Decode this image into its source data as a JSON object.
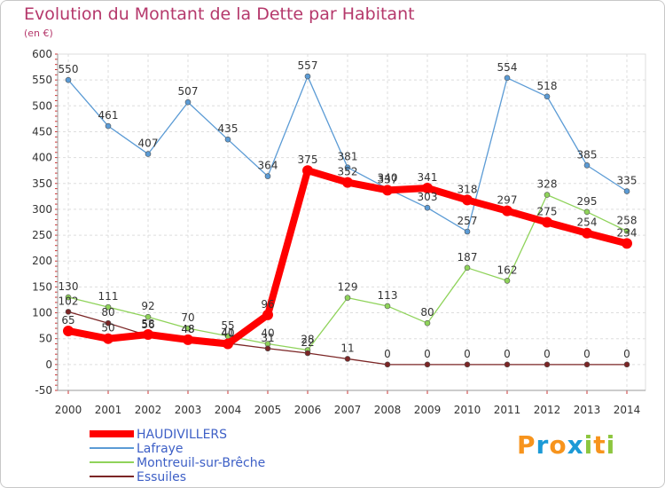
{
  "chart_data": {
    "type": "line",
    "title": "Evolution du Montant de la Dette par Habitant",
    "subtitle": "(en €)",
    "xlabel": "",
    "ylabel": "",
    "ylim": [
      -50,
      600
    ],
    "yticks": [
      "-50",
      "0",
      "50",
      "100",
      "150",
      "200",
      "250",
      "300",
      "350",
      "400",
      "450",
      "500",
      "550",
      "600"
    ],
    "categories": [
      "2000",
      "2001",
      "2002",
      "2003",
      "2004",
      "2005",
      "2006",
      "2007",
      "2008",
      "2009",
      "2010",
      "2011",
      "2012",
      "2013",
      "2014"
    ],
    "grid": true,
    "legend_position": "bottom-left",
    "series": [
      {
        "name": "HAUDIVILLERS",
        "color": "#ff0000",
        "values": [
          65,
          50,
          58,
          48,
          40,
          96,
          375,
          352,
          337,
          341,
          318,
          297,
          275,
          254,
          234
        ],
        "labels": [
          "65",
          "50",
          "58",
          "48",
          "40",
          "96",
          "375",
          "352",
          "337",
          "341",
          "318",
          "297",
          "275",
          "254",
          "234"
        ],
        "bold": true
      },
      {
        "name": "Lafraye",
        "color": "#5b9bd5",
        "values": [
          550,
          461,
          407,
          507,
          435,
          364,
          557,
          381,
          340,
          303,
          257,
          554,
          518,
          385,
          335
        ],
        "labels": [
          "550",
          "461",
          "407",
          "507",
          "435",
          "364",
          "557",
          "381",
          "340",
          "303",
          "257",
          "554",
          "518",
          "385",
          "335"
        ]
      },
      {
        "name": "Montreuil-sur-Brêche",
        "color": "#8fd35a",
        "values": [
          130,
          111,
          92,
          70,
          55,
          40,
          28,
          129,
          113,
          80,
          187,
          162,
          328,
          295,
          258
        ],
        "labels": [
          "130",
          "111",
          "92",
          "70",
          "55",
          "40",
          "28",
          "129",
          "113",
          "80",
          "187",
          "162",
          "328",
          "295",
          "258"
        ]
      },
      {
        "name": "Essuiles",
        "color": "#7b2525",
        "values": [
          102,
          80,
          56,
          48,
          41,
          31,
          22,
          11,
          0,
          0,
          0,
          0,
          0,
          0,
          0
        ],
        "labels": [
          "102",
          "80",
          "56",
          "48",
          "41",
          "31",
          "22",
          "11",
          "0",
          "0",
          "0",
          "0",
          "0",
          "0",
          "0"
        ]
      }
    ]
  },
  "brand": {
    "text": "Proxiti",
    "letters": [
      "P",
      "r",
      "o",
      "x",
      "i",
      "t",
      "i"
    ],
    "colors": [
      "#f7941d",
      "#1c9ad6",
      "#f7941d",
      "#1c9ad6",
      "#8dc63f",
      "#f7941d",
      "#8dc63f"
    ]
  }
}
